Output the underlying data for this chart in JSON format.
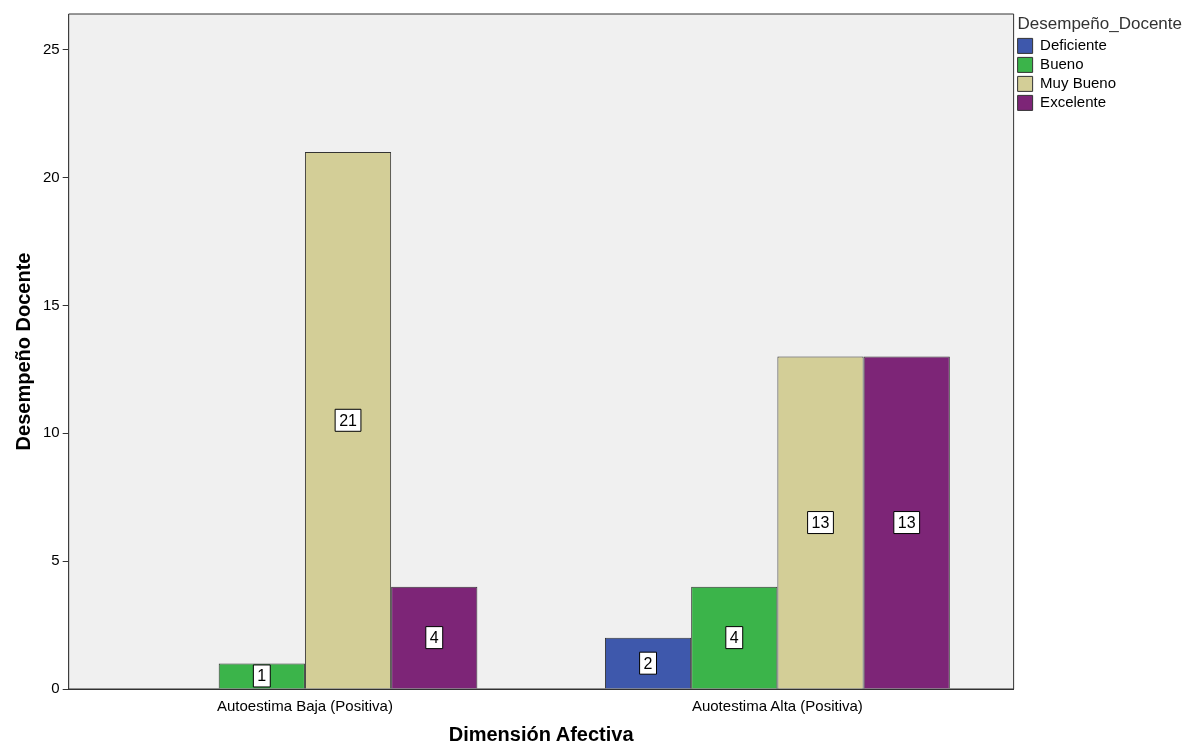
{
  "chart_data": {
    "type": "bar",
    "xlabel": "Dimensión Afectiva",
    "ylabel": "Desempeño Docente",
    "legend_title": "Desempeño_Docente",
    "categories": [
      "Autoestima Baja (Positiva)",
      "Auotestima Alta (Positiva)"
    ],
    "series": [
      {
        "name": "Deficiente",
        "color": "#3e58ac",
        "values": [
          null,
          2
        ]
      },
      {
        "name": "Bueno",
        "color": "#3bb44a",
        "values": [
          1,
          4
        ]
      },
      {
        "name": "Muy Bueno",
        "color": "#d3ce97",
        "values": [
          21,
          13
        ]
      },
      {
        "name": "Excelente",
        "color": "#7d2577",
        "values": [
          4,
          13
        ]
      }
    ],
    "ylim": [
      0,
      26.4
    ],
    "yticks": [
      0,
      5,
      10,
      15,
      20,
      25
    ],
    "grid": false,
    "legend": "right",
    "data_labels": true
  }
}
